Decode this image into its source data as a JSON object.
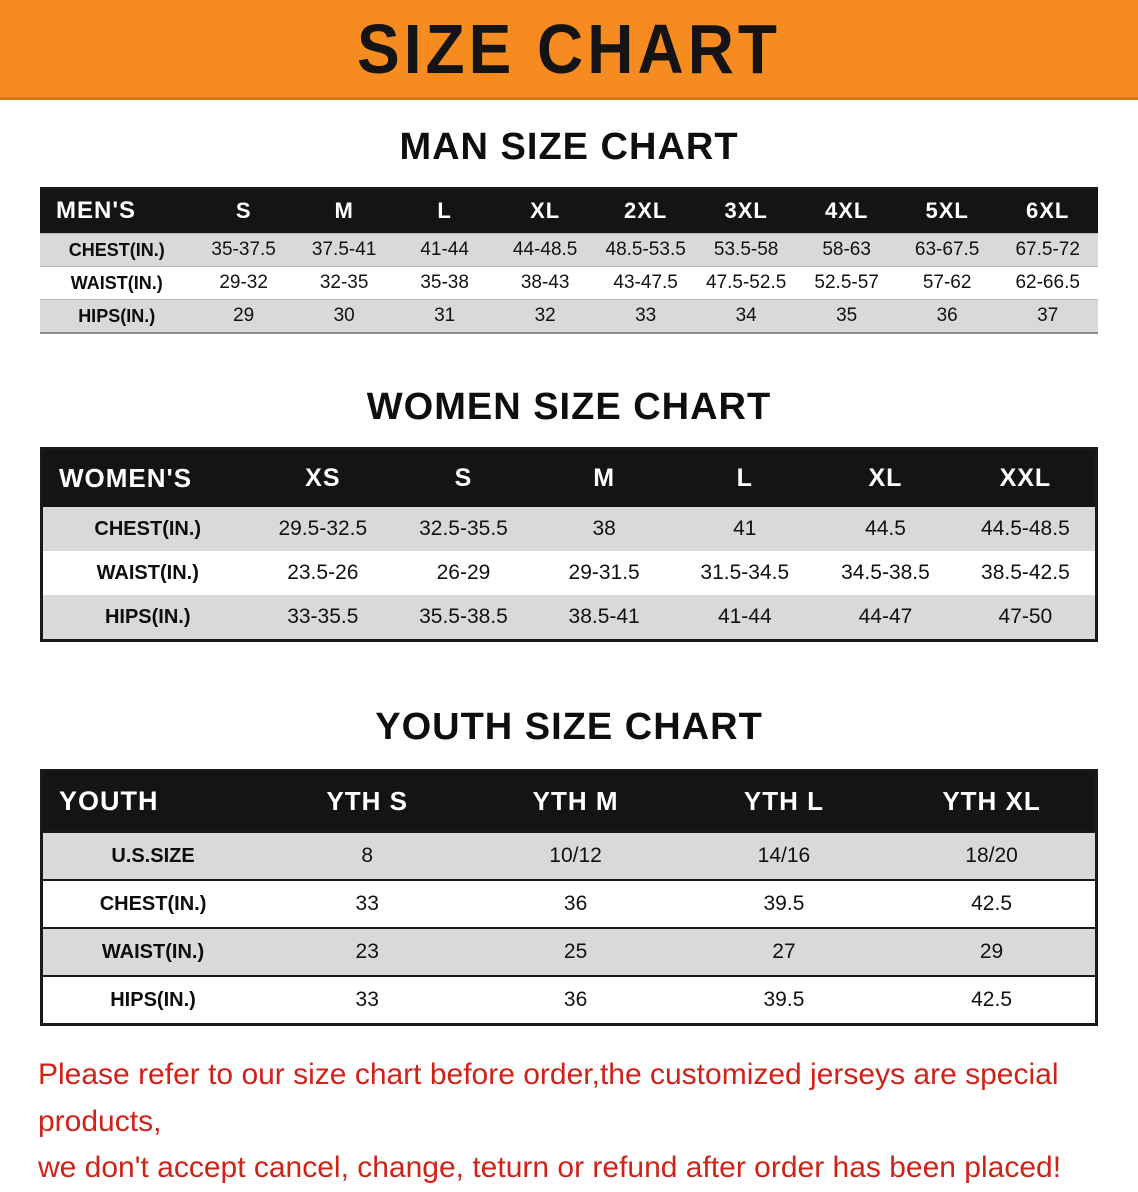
{
  "banner": {
    "title": "SIZE CHART",
    "bg_color": "#f68b1f",
    "text_color": "#141414"
  },
  "sections": [
    {
      "id": "men",
      "title": "MAN SIZE CHART",
      "corner_label": "MEN'S",
      "columns": [
        "S",
        "M",
        "L",
        "XL",
        "2XL",
        "3XL",
        "4XL",
        "5XL",
        "6XL"
      ],
      "rows": [
        {
          "label": "CHEST(IN.)",
          "values": [
            "35-37.5",
            "37.5-41",
            "41-44",
            "44-48.5",
            "48.5-53.5",
            "53.5-58",
            "58-63",
            "63-67.5",
            "67.5-72"
          ]
        },
        {
          "label": "WAIST(IN.)",
          "values": [
            "29-32",
            "32-35",
            "35-38",
            "38-43",
            "43-47.5",
            "47.5-52.5",
            "52.5-57",
            "57-62",
            "62-66.5"
          ]
        },
        {
          "label": "HIPS(IN.)",
          "values": [
            "29",
            "30",
            "31",
            "32",
            "33",
            "34",
            "35",
            "36",
            "37"
          ]
        }
      ]
    },
    {
      "id": "women",
      "title": "WOMEN SIZE CHART",
      "corner_label": "WOMEN'S",
      "columns": [
        "XS",
        "S",
        "M",
        "L",
        "XL",
        "XXL"
      ],
      "rows": [
        {
          "label": "CHEST(IN.)",
          "values": [
            "29.5-32.5",
            "32.5-35.5",
            "38",
            "41",
            "44.5",
            "44.5-48.5"
          ]
        },
        {
          "label": "WAIST(IN.)",
          "values": [
            "23.5-26",
            "26-29",
            "29-31.5",
            "31.5-34.5",
            "34.5-38.5",
            "38.5-42.5"
          ]
        },
        {
          "label": "HIPS(IN.)",
          "values": [
            "33-35.5",
            "35.5-38.5",
            "38.5-41",
            "41-44",
            "44-47",
            "47-50"
          ]
        }
      ]
    },
    {
      "id": "youth",
      "title": "YOUTH SIZE CHART",
      "corner_label": "YOUTH",
      "columns": [
        "YTH S",
        "YTH M",
        "YTH L",
        "YTH XL"
      ],
      "rows": [
        {
          "label": "U.S.SIZE",
          "values": [
            "8",
            "10/12",
            "14/16",
            "18/20"
          ]
        },
        {
          "label": "CHEST(IN.)",
          "values": [
            "33",
            "36",
            "39.5",
            "42.5"
          ]
        },
        {
          "label": "WAIST(IN.)",
          "values": [
            "23",
            "25",
            "27",
            "29"
          ]
        },
        {
          "label": "HIPS(IN.)",
          "values": [
            "33",
            "36",
            "39.5",
            "42.5"
          ]
        }
      ]
    }
  ],
  "footer": {
    "line1": "Please refer to our size chart before order,the customized jerseys are special products,",
    "line2": "we don't accept cancel, change, teturn or refund after order has been placed!",
    "text_color": "#cf2318"
  }
}
